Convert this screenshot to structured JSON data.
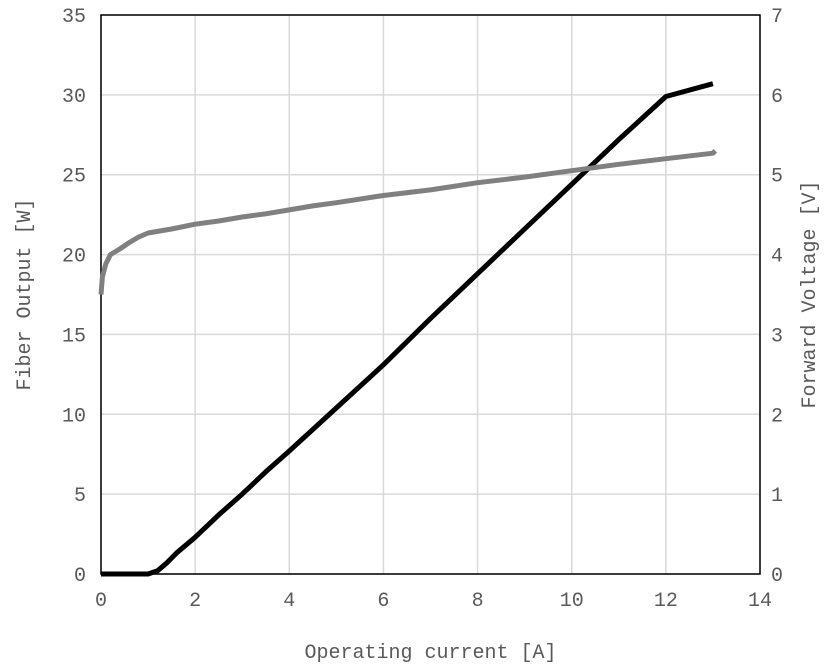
{
  "chart_data": {
    "type": "line",
    "title": "",
    "xlabel": "Operating current [A]",
    "ylabel": "Fiber Output [W]",
    "y2label": "Forward Voltage [V]",
    "xlim": [
      0,
      14
    ],
    "ylim": [
      0,
      35
    ],
    "y2lim": [
      0,
      7
    ],
    "x_ticks": [
      0,
      2,
      4,
      6,
      8,
      10,
      12,
      14
    ],
    "y_ticks": [
      0,
      5,
      10,
      15,
      20,
      25,
      30,
      35
    ],
    "y2_ticks": [
      0,
      1,
      2,
      3,
      4,
      5,
      6,
      7
    ],
    "grid": true,
    "legend": "none",
    "series": [
      {
        "axis": "left",
        "color": "#000000",
        "x": [
          0,
          0.5,
          1.0,
          1.2,
          1.4,
          1.6,
          2.0,
          2.5,
          3.0,
          3.5,
          4.0,
          5.0,
          6.0,
          7.0,
          8.0,
          9.0,
          10.0,
          11.0,
          12.0,
          13.0
        ],
        "values": [
          0,
          0,
          0,
          0.2,
          0.7,
          1.3,
          2.3,
          3.7,
          5.0,
          6.4,
          7.7,
          10.4,
          13.1,
          16.0,
          18.8,
          21.6,
          24.4,
          27.2,
          29.9,
          30.7
        ]
      },
      {
        "axis": "right",
        "color": "#808080",
        "x": [
          0,
          0.03,
          0.1,
          0.2,
          0.4,
          0.6,
          0.8,
          1.0,
          1.2,
          1.5,
          2.0,
          2.5,
          3.0,
          3.5,
          4.0,
          4.5,
          5.0,
          6.0,
          7.0,
          8.0,
          9.0,
          10.0,
          11.0,
          12.0,
          13.0,
          13.05
        ],
        "values": [
          3.5,
          3.72,
          3.88,
          4.0,
          4.07,
          4.15,
          4.22,
          4.27,
          4.29,
          4.32,
          4.38,
          4.42,
          4.47,
          4.51,
          4.56,
          4.61,
          4.65,
          4.74,
          4.81,
          4.9,
          4.97,
          5.05,
          5.13,
          5.2,
          5.27,
          5.3
        ]
      }
    ]
  }
}
